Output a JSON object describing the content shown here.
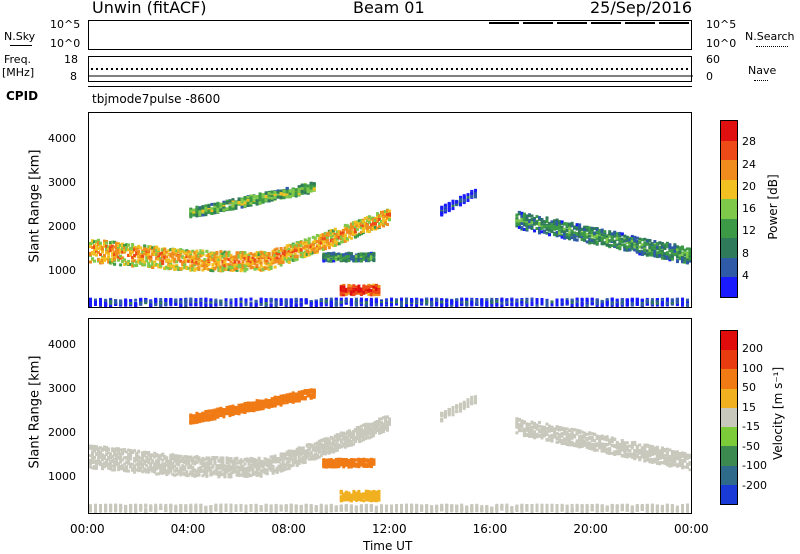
{
  "header": {
    "station": "Unwin (fitACF)",
    "beam": "Beam 01",
    "date": "25/Sep/2016"
  },
  "top_strip": {
    "nsky_label": "N.Sky",
    "nsearch_label": "N.Search",
    "left_ticks": [
      "10^5",
      "10^0"
    ],
    "right_ticks": [
      "10^5",
      "10^0"
    ],
    "freq_label": "Freq.",
    "freq_unit": "[MHz]",
    "freq_ticks": [
      "18",
      "8"
    ],
    "nave_label": "Nave",
    "nave_ticks": [
      "60",
      "0"
    ],
    "cpid_label": "CPID",
    "cpid_value": "tbjmode7pulse -8600"
  },
  "chart_data": [
    {
      "type": "heatmap",
      "name": "power",
      "ylabel": "Slant Range [km]",
      "y_ticks": [
        "1000",
        "2000",
        "3000",
        "4000"
      ],
      "ylim": [
        180,
        4600
      ],
      "x_ticks": [
        "00:00",
        "04:00",
        "08:00",
        "12:00",
        "16:00",
        "20:00",
        "00:00"
      ],
      "colorbar": {
        "label": "Power [dB]",
        "ticks": [
          "4",
          "8",
          "12",
          "16",
          "20",
          "24",
          "28"
        ],
        "colors": [
          "#1a1aff",
          "#2e5aa8",
          "#2f7a5a",
          "#3c9a46",
          "#7ec84a",
          "#f2c020",
          "#f08c1e",
          "#ee4a18",
          "#e01010"
        ]
      }
    },
    {
      "type": "heatmap",
      "name": "velocity",
      "ylabel": "Slant Range [km]",
      "y_ticks": [
        "1000",
        "2000",
        "3000",
        "4000"
      ],
      "ylim": [
        180,
        4600
      ],
      "x_ticks": [
        "00:00",
        "04:00",
        "08:00",
        "12:00",
        "16:00",
        "20:00",
        "00:00"
      ],
      "xlabel": "Time UT",
      "colorbar": {
        "label": "Velocity [m s⁻¹]",
        "ticks": [
          "200",
          "100",
          "50",
          "15",
          "-15",
          "-50",
          "-100",
          "-200"
        ],
        "colors": [
          "#1a3ad8",
          "#2e6a8a",
          "#3c8a50",
          "#7ccc3a",
          "#c8c8bc",
          "#f0b020",
          "#f07a14",
          "#e83c10",
          "#e00c0c"
        ]
      }
    }
  ]
}
